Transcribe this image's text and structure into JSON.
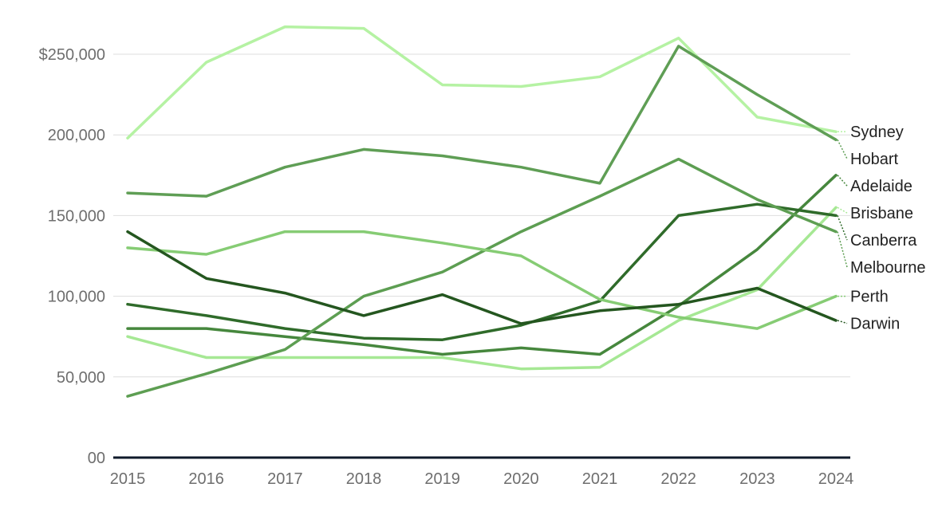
{
  "chart_data": {
    "type": "line",
    "title": "",
    "xlabel": "",
    "ylabel": "",
    "x": [
      2015,
      2016,
      2017,
      2018,
      2019,
      2020,
      2021,
      2022,
      2023,
      2024
    ],
    "x_tick_labels": [
      "2015",
      "2016",
      "2017",
      "2018",
      "2019",
      "2020",
      "2021",
      "2022",
      "2023",
      "2024"
    ],
    "ylim": [
      0,
      250000
    ],
    "y_ticks": [
      0,
      50000,
      100000,
      150000,
      200000,
      250000
    ],
    "y_tick_labels": [
      "00",
      "50,000",
      "100,000",
      "150,000",
      "200,000",
      "$250,000"
    ],
    "grid": true,
    "legend": "direct labels at right end of lines",
    "series": [
      {
        "name": "Sydney",
        "color": "#b5f2a3",
        "values": [
          198000,
          245000,
          267000,
          266000,
          231000,
          230000,
          236000,
          260000,
          211000,
          202000
        ]
      },
      {
        "name": "Hobart",
        "color": "#5f9e55",
        "values": [
          164000,
          162000,
          180000,
          191000,
          187000,
          180000,
          170000,
          255000,
          225000,
          197000
        ]
      },
      {
        "name": "Adelaide",
        "color": "#46873d",
        "values": [
          80000,
          80000,
          75000,
          70000,
          64000,
          68000,
          64000,
          94000,
          129000,
          175000
        ]
      },
      {
        "name": "Brisbane",
        "color": "#a6e894",
        "values": [
          75000,
          62000,
          62000,
          62000,
          62000,
          55000,
          56000,
          85000,
          104000,
          155000
        ]
      },
      {
        "name": "Canberra",
        "color": "#2f6b2a",
        "values": [
          95000,
          88000,
          80000,
          74000,
          73000,
          82000,
          97000,
          150000,
          157000,
          150000
        ]
      },
      {
        "name": "Melbourne",
        "color": "#5d9e52",
        "values": [
          38000,
          52000,
          67000,
          100000,
          115000,
          140000,
          162000,
          185000,
          160000,
          140000
        ]
      },
      {
        "name": "Perth",
        "color": "#86cc74",
        "values": [
          130000,
          126000,
          140000,
          140000,
          133000,
          125000,
          98000,
          87000,
          80000,
          100000
        ]
      },
      {
        "name": "Darwin",
        "color": "#24561f",
        "values": [
          140000,
          111000,
          102000,
          88000,
          101000,
          83000,
          91000,
          95000,
          105000,
          85000
        ]
      }
    ]
  }
}
